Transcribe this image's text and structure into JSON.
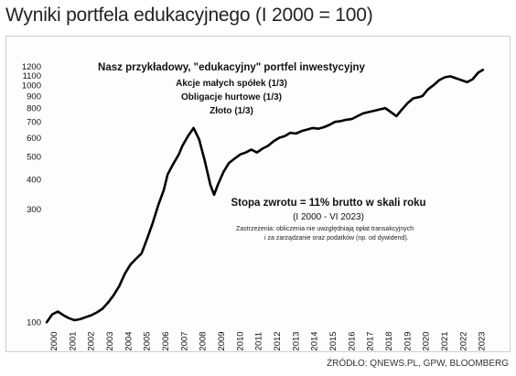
{
  "title": "Wyniki portfela edukacyjnego (I 2000 = 100)",
  "source": "ŹRÓDŁO: QNEWS.PL, GPW, BLOOMBERG",
  "chart_data": {
    "type": "line",
    "scale": "log",
    "ylim": [
      95,
      1250
    ],
    "yticks": [
      100,
      300,
      400,
      500,
      600,
      700,
      800,
      900,
      1000,
      1100,
      1200
    ],
    "xticks": [
      "2000",
      "2001",
      "2002",
      "2003",
      "2004",
      "2005",
      "2006",
      "2007",
      "2008",
      "2009",
      "2010",
      "2011",
      "2012",
      "2013",
      "2014",
      "2015",
      "2016",
      "2017",
      "2018",
      "2019",
      "2020",
      "2021",
      "2022",
      "2023"
    ],
    "xlim": [
      2000,
      2024
    ],
    "line_color": "#000000",
    "annotation": {
      "title": "Nasz przykładowy,  \"edukacyjny\"  portfel inwestycyjny",
      "lines": [
        "Akcje małych spółek (1/3)",
        "Obligacje hurtowe (1/3)",
        "Złoto (1/3)"
      ]
    },
    "return_box": {
      "main": "Stopa zwrotu = 11% brutto w skali roku",
      "period": "(I 2000 - VI 2023)",
      "note_lines": [
        "Zastrzeżenia: obliczenia nie uwzględniają opłat transakcyjnych",
        "i za zarządzanie oraz podatków (np. od dywidend)."
      ]
    },
    "series": [
      {
        "x": [
          2000.0,
          2000.3,
          2000.6,
          2000.9,
          2001.2,
          2001.5,
          2001.8,
          2002.1,
          2002.4,
          2002.7,
          2003.0,
          2003.3,
          2003.6,
          2003.9,
          2004.2,
          2004.5,
          2004.8,
          2005.1,
          2005.4,
          2005.7,
          2006.0,
          2006.3,
          2006.5,
          2006.8,
          2007.1,
          2007.3,
          2007.6,
          2007.9,
          2008.2,
          2008.5,
          2008.8,
          2009.0,
          2009.2,
          2009.5,
          2009.8,
          2010.1,
          2010.4,
          2010.7,
          2011.0,
          2011.3,
          2011.6,
          2011.9,
          2012.2,
          2012.5,
          2012.8,
          2013.1,
          2013.4,
          2013.7,
          2014.0,
          2014.3,
          2014.6,
          2014.9,
          2015.2,
          2015.5,
          2015.8,
          2016.1,
          2016.4,
          2016.7,
          2017.0,
          2017.3,
          2017.6,
          2017.9,
          2018.2,
          2018.5,
          2018.8,
          2019.1,
          2019.4,
          2019.7,
          2020.0,
          2020.2,
          2020.5,
          2020.8,
          2021.1,
          2021.4,
          2021.7,
          2022.0,
          2022.3,
          2022.6,
          2022.9,
          2023.2,
          2023.45
        ],
        "values": [
          100,
          108,
          111,
          107,
          104,
          102,
          103,
          105,
          107,
          110,
          114,
          121,
          130,
          142,
          160,
          175,
          185,
          195,
          225,
          262,
          312,
          362,
          420,
          465,
          510,
          555,
          610,
          660,
          590,
          480,
          380,
          345,
          380,
          430,
          470,
          490,
          510,
          520,
          535,
          520,
          540,
          555,
          580,
          600,
          610,
          630,
          625,
          640,
          650,
          660,
          655,
          665,
          680,
          700,
          705,
          715,
          720,
          740,
          760,
          770,
          780,
          790,
          800,
          770,
          740,
          790,
          840,
          880,
          890,
          900,
          960,
          1000,
          1050,
          1080,
          1090,
          1070,
          1050,
          1030,
          1060,
          1130,
          1160
        ]
      }
    ]
  }
}
